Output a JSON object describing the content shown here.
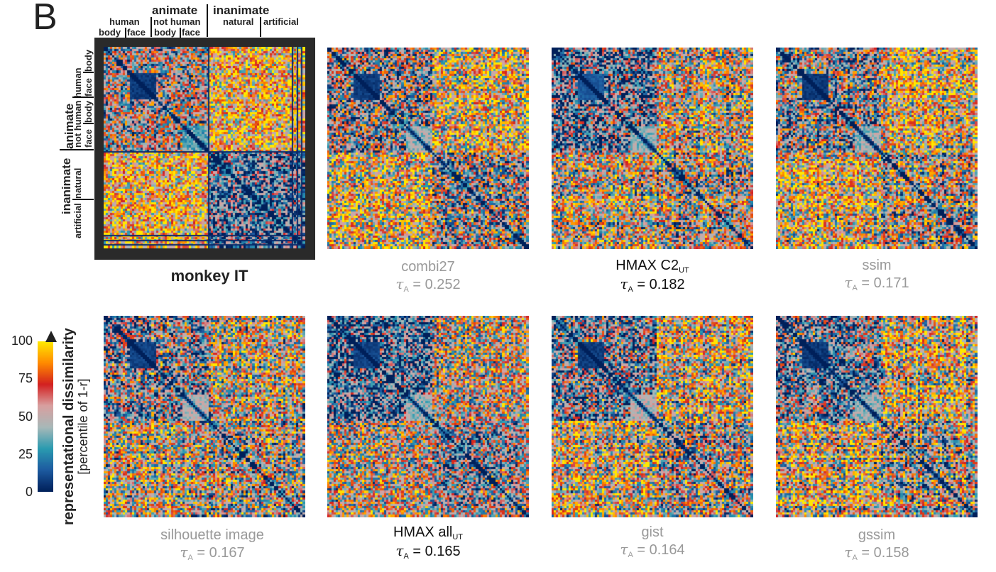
{
  "panel_letter": "B",
  "category_labels": {
    "top": {
      "animate": "animate",
      "inanimate": "inanimate",
      "human": "human",
      "not_human": "not human",
      "natural": "natural",
      "artificial": "artificial",
      "body": "body",
      "face": "face"
    },
    "side": {
      "animate": "animate",
      "inanimate": "inanimate",
      "human": "human",
      "not_human": "not human",
      "natural": "natural",
      "artificial": "artificial",
      "body": "body",
      "face": "face"
    }
  },
  "panels": [
    {
      "name": "monkey IT",
      "style": "bold",
      "sub": "",
      "tau_label": "",
      "tau_value": ""
    },
    {
      "name": "combi27",
      "style": "gray",
      "sub": "",
      "tau_label": "A",
      "tau_value": "= 0.252"
    },
    {
      "name": "HMAX C2",
      "style": "black",
      "sub": "UT",
      "tau_label": "A",
      "tau_value": "= 0.182"
    },
    {
      "name": "ssim",
      "style": "gray",
      "sub": "",
      "tau_label": "A",
      "tau_value": "= 0.171"
    },
    {
      "name": "silhouette image",
      "style": "gray",
      "sub": "",
      "tau_label": "A",
      "tau_value": "= 0.167"
    },
    {
      "name": "HMAX all",
      "style": "black",
      "sub": "UT",
      "tau_label": "A",
      "tau_value": "= 0.165"
    },
    {
      "name": "gist",
      "style": "gray",
      "sub": "",
      "tau_label": "A",
      "tau_value": "= 0.164"
    },
    {
      "name": "gssim",
      "style": "gray",
      "sub": "",
      "tau_label": "A",
      "tau_value": "= 0.158"
    }
  ],
  "tau_symbol": "τ",
  "colorbar": {
    "ticks": [
      "100",
      "75",
      "50",
      "25",
      "0"
    ],
    "label_line1": "representational dissimilarity",
    "label_line2": "[percentile of 1-r]",
    "colors": [
      "#00205a",
      "#1d5aa0",
      "#2a9bb0",
      "#a8b8b8",
      "#d8a0a0",
      "#d32020",
      "#ff8a00",
      "#ffe800"
    ]
  },
  "chart_data": {
    "type": "heatmap",
    "value_range": [
      0,
      100
    ],
    "value_meaning": "percentile of 1-r",
    "matrices": [
      "monkey IT",
      "combi27",
      "HMAX C2UT",
      "ssim",
      "silhouette image",
      "HMAX allUT",
      "gist",
      "gssim"
    ]
  }
}
